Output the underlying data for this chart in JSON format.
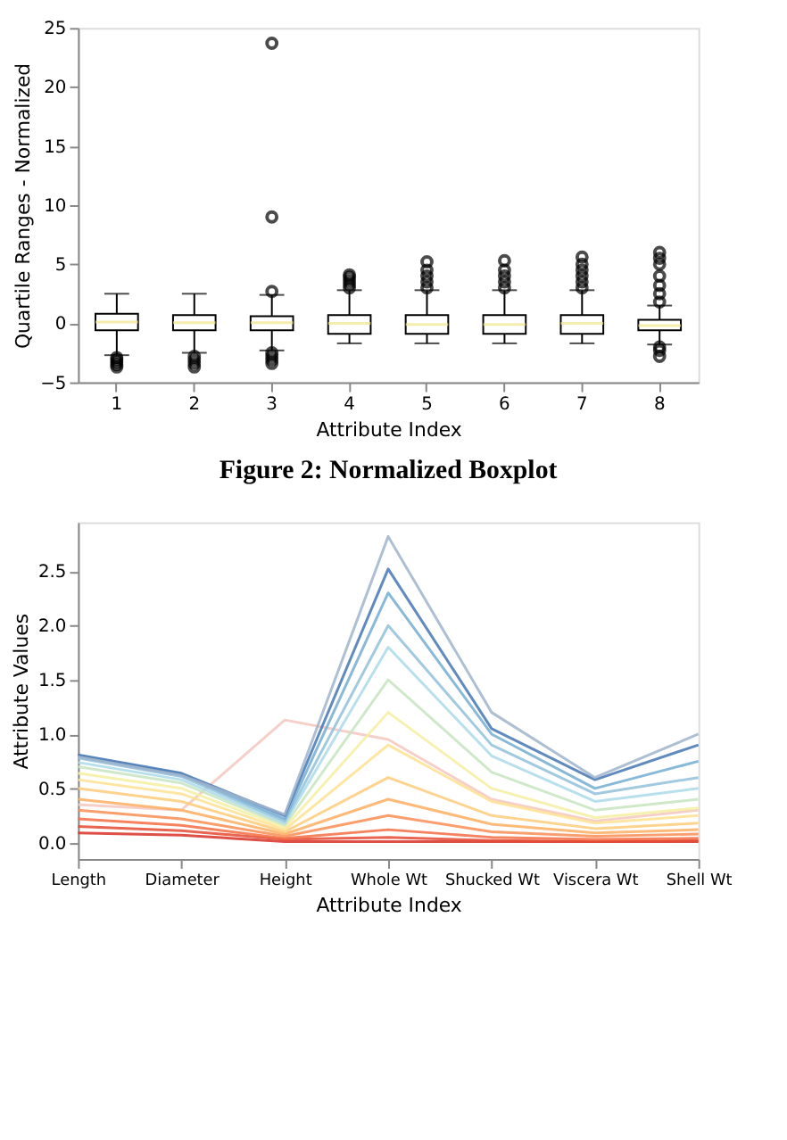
{
  "chart_data": [
    {
      "type": "box",
      "xlabel": "Attribute Index",
      "ylabel": "Quartile Ranges - Normalized",
      "annotations": [
        "Figure 2: Normalized Boxplot"
      ],
      "categories": [
        "1",
        "2",
        "3",
        "4",
        "5",
        "6",
        "7",
        "8"
      ],
      "ylim": [
        -5,
        25
      ],
      "yticks": [
        -5,
        0,
        5,
        10,
        15,
        20,
        25
      ],
      "grid": false,
      "color": "#000000",
      "boxes": [
        {
          "low": -2.7,
          "q1": -0.6,
          "median": 0.1,
          "q3": 0.8,
          "high": 2.5,
          "outliers": [
            -2.9,
            -3.1,
            -3.3,
            -3.5,
            -3.7
          ]
        },
        {
          "low": -2.5,
          "q1": -0.6,
          "median": 0.05,
          "q3": 0.7,
          "high": 2.5,
          "outliers": [
            -2.8,
            -3.1,
            -3.4,
            -3.7
          ]
        },
        {
          "low": -2.3,
          "q1": -0.6,
          "median": 0.05,
          "q3": 0.6,
          "high": 2.4,
          "outliers": [
            2.7,
            9.0,
            23.7,
            -2.5,
            -2.8,
            -3.1,
            -3.4
          ]
        },
        {
          "low": -1.7,
          "q1": -0.9,
          "median": 0.0,
          "q3": 0.7,
          "high": 2.8,
          "outliers": [
            3.0,
            3.3,
            3.6,
            3.9,
            4.1
          ]
        },
        {
          "low": -1.7,
          "q1": -0.9,
          "median": -0.1,
          "q3": 0.7,
          "high": 2.8,
          "outliers": [
            3.0,
            3.5,
            4.0,
            4.5,
            5.2
          ]
        },
        {
          "low": -1.7,
          "q1": -0.9,
          "median": -0.1,
          "q3": 0.7,
          "high": 2.8,
          "outliers": [
            3.0,
            3.5,
            4.0,
            4.5,
            5.3
          ]
        },
        {
          "low": -1.7,
          "q1": -0.9,
          "median": 0.0,
          "q3": 0.7,
          "high": 2.8,
          "outliers": [
            3.0,
            3.5,
            4.0,
            4.5,
            5.0,
            5.6
          ]
        },
        {
          "low": -1.8,
          "q1": -0.6,
          "median": -0.2,
          "q3": 0.3,
          "high": 1.5,
          "outliers": [
            1.8,
            2.5,
            3.2,
            4.0,
            5.0,
            5.5,
            6.0,
            -2.0,
            -2.3,
            -2.8
          ]
        }
      ]
    },
    {
      "type": "line",
      "xlabel": "Attribute Index",
      "ylabel": "Attribute Values",
      "categories": [
        "Length",
        "Diameter",
        "Height",
        "Whole Wt",
        "Shucked Wt",
        "Viscera Wt",
        "Shell Wt"
      ],
      "ylim": [
        -0.15,
        2.95
      ],
      "yticks": [
        {
          "value": 0,
          "label": "0.0"
        },
        0.5,
        {
          "value": 1,
          "label": "1.0"
        },
        1.5,
        {
          "value": 2,
          "label": "2.0"
        },
        2.5
      ],
      "grid": false,
      "marker": "none",
      "line_style": "solid",
      "series": [
        {
          "color": "#f4c7c0",
          "values": [
            0.35,
            0.3,
            1.13,
            0.95,
            0.4,
            0.2,
            0.3
          ]
        },
        {
          "color": "#d73027",
          "values": [
            0.09,
            0.07,
            0.01,
            0.01,
            0.01,
            0.01,
            0.01
          ]
        },
        {
          "color": "#e34a33",
          "values": [
            0.15,
            0.11,
            0.03,
            0.05,
            0.02,
            0.01,
            0.02
          ]
        },
        {
          "color": "#f46d43",
          "values": [
            0.22,
            0.16,
            0.04,
            0.12,
            0.05,
            0.03,
            0.04
          ]
        },
        {
          "color": "#f88d52",
          "values": [
            0.3,
            0.22,
            0.06,
            0.25,
            0.1,
            0.06,
            0.08
          ]
        },
        {
          "color": "#fdae61",
          "values": [
            0.4,
            0.3,
            0.08,
            0.4,
            0.17,
            0.09,
            0.12
          ]
        },
        {
          "color": "#fdcb7a",
          "values": [
            0.5,
            0.38,
            0.1,
            0.6,
            0.25,
            0.13,
            0.18
          ]
        },
        {
          "color": "#fee090",
          "values": [
            0.58,
            0.45,
            0.12,
            0.9,
            0.38,
            0.18,
            0.25
          ]
        },
        {
          "color": "#f5eea0",
          "values": [
            0.64,
            0.5,
            0.14,
            1.2,
            0.5,
            0.23,
            0.32
          ]
        },
        {
          "color": "#c7e4c0",
          "values": [
            0.7,
            0.55,
            0.16,
            1.5,
            0.65,
            0.3,
            0.4
          ]
        },
        {
          "color": "#abd9e9",
          "values": [
            0.74,
            0.58,
            0.18,
            1.8,
            0.8,
            0.38,
            0.5
          ]
        },
        {
          "color": "#91bfdb",
          "values": [
            0.78,
            0.61,
            0.2,
            2.0,
            0.9,
            0.45,
            0.6
          ]
        },
        {
          "color": "#74add1",
          "values": [
            0.8,
            0.63,
            0.22,
            2.3,
            1.0,
            0.5,
            0.75
          ]
        },
        {
          "color": "#4575b4",
          "values": [
            0.81,
            0.64,
            0.25,
            2.52,
            1.05,
            0.58,
            0.9
          ]
        },
        {
          "color": "#a0b4cc",
          "values": [
            0.79,
            0.62,
            0.26,
            2.82,
            1.2,
            0.6,
            1.0
          ]
        }
      ]
    }
  ]
}
